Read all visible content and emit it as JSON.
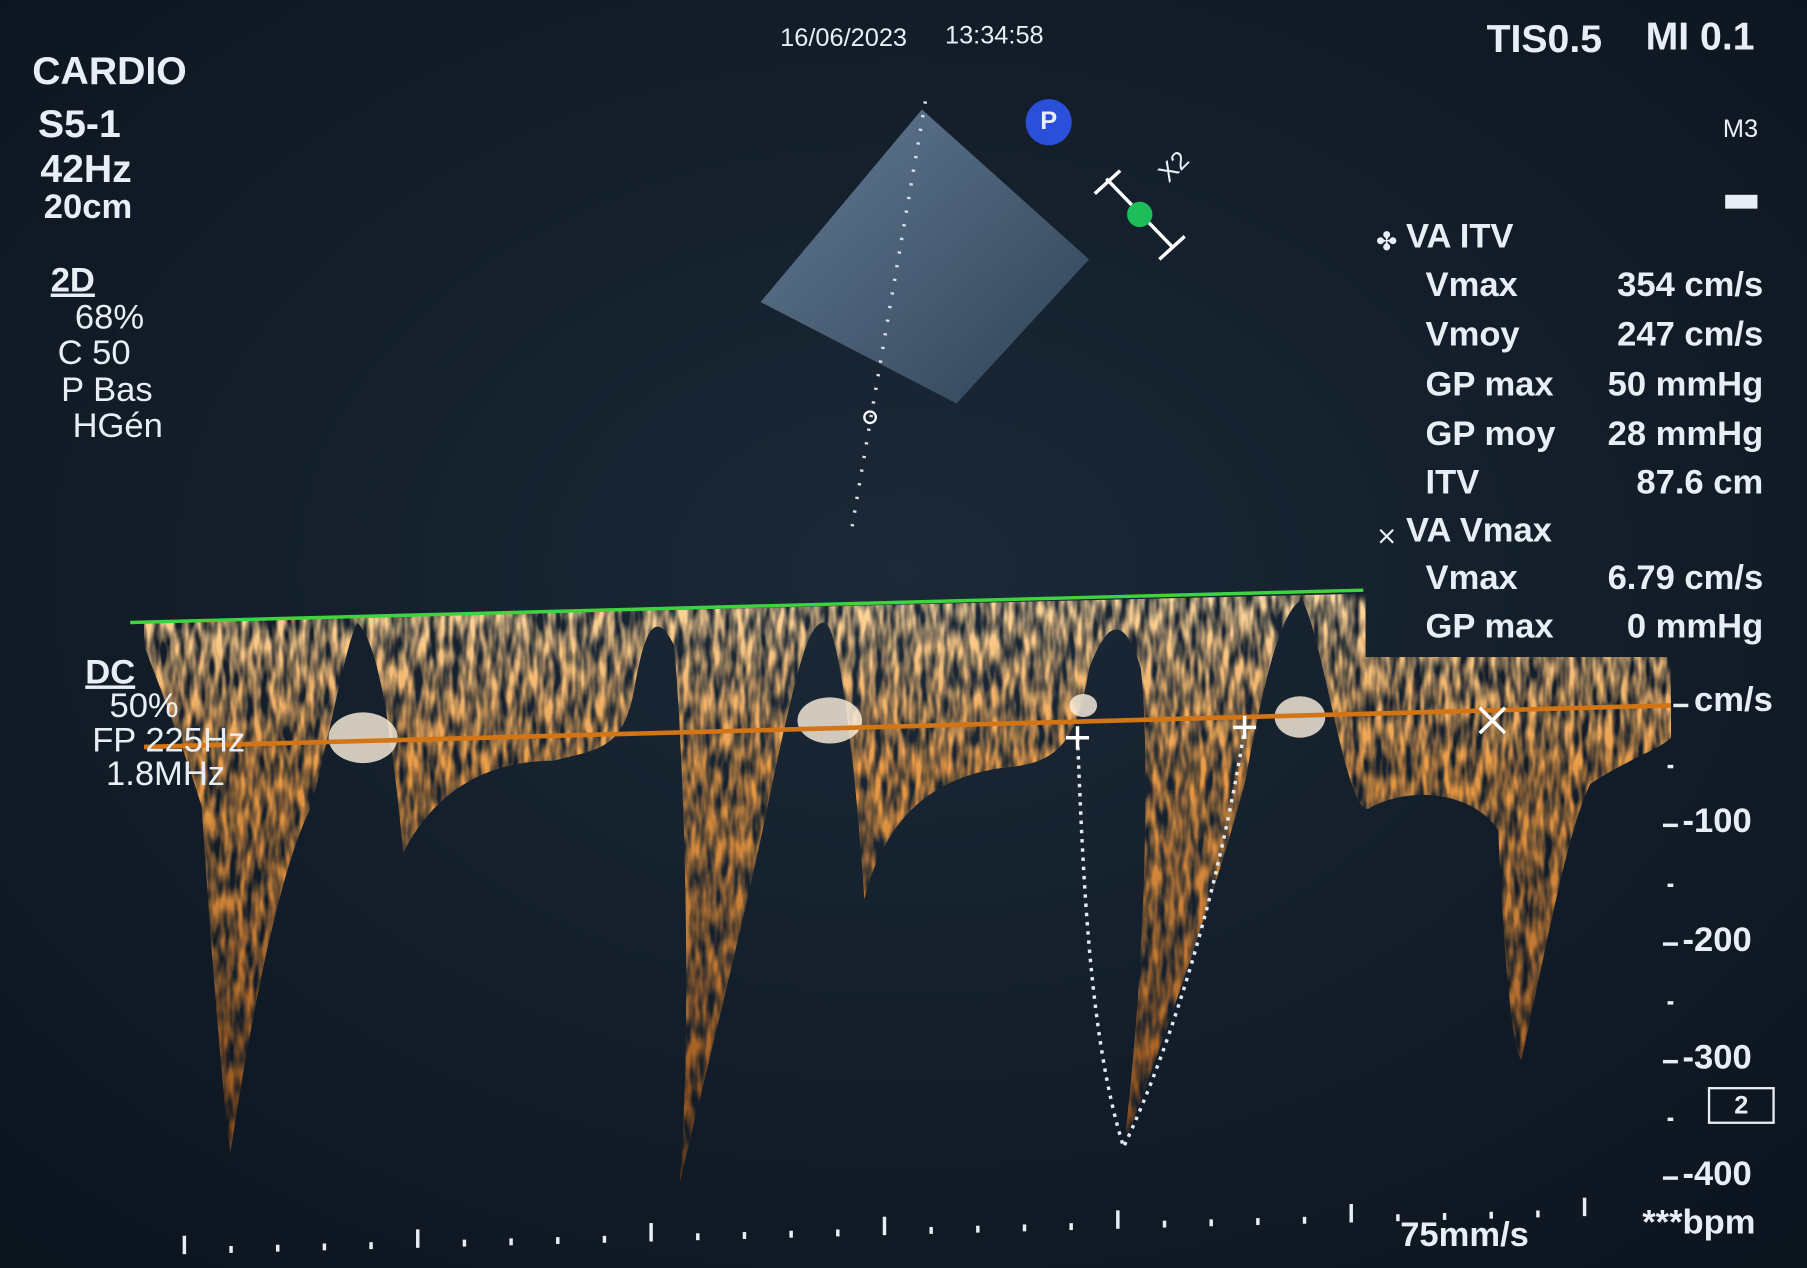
{
  "header": {
    "date": "16/06/2023",
    "time": "13:34:58",
    "tis": "TIS0.5",
    "mi": "MI 0.1",
    "mode": "M3"
  },
  "left_panel": {
    "preset": "CARDIO",
    "probe": "S5-1",
    "frame_rate": "42Hz",
    "depth": "20cm",
    "mode": "2D",
    "gain": "68%",
    "contrast": "C 50",
    "power": "P Bas",
    "harmonic": "HGén"
  },
  "doppler_panel": {
    "mode": "DC",
    "gain": "50%",
    "prf": "FP 225Hz",
    "frequency": "1.8MHz"
  },
  "probe_icon": "P",
  "marker_label": "X2",
  "measurements": [
    {
      "title": "VA ITV",
      "rows": [
        {
          "label": "Vmax",
          "value": "354 cm/s"
        },
        {
          "label": "Vmoy",
          "value": "247 cm/s"
        },
        {
          "label": "GP max",
          "value": "50 mmHg"
        },
        {
          "label": "GP moy",
          "value": "28 mmHg"
        },
        {
          "label": "ITV",
          "value": "87.6 cm"
        }
      ]
    },
    {
      "title": "VA Vmax",
      "rows": [
        {
          "label": "Vmax",
          "value": "6.79 cm/s"
        },
        {
          "label": "GP max",
          "value": "0 mmHg"
        }
      ]
    }
  ],
  "scale": {
    "unit": "cm/s",
    "labels": [
      "-100",
      "-200",
      "-300",
      "-400"
    ]
  },
  "zoom": "2",
  "sweep_speed": "75mm/s",
  "heart_rate": "***bpm"
}
